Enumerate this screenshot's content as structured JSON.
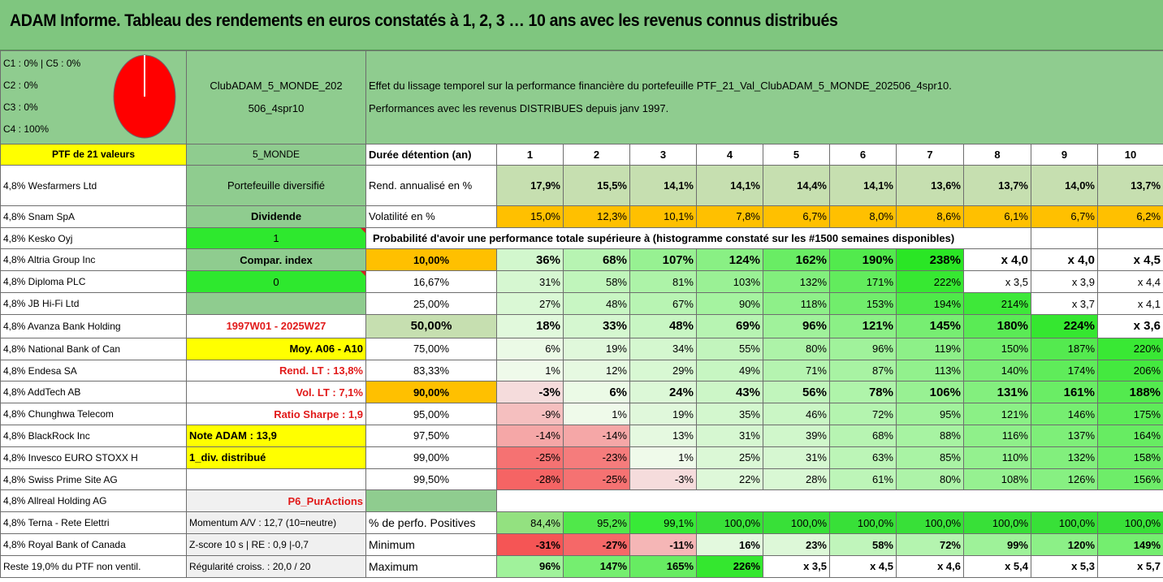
{
  "title": "ADAM Informe. Tableau des rendements en euros constatés à 1, 2, 3 … 10 ans avec les revenus connus distribués",
  "legend": [
    "C1 : 0% | C5 : 0%",
    "C2 : 0%",
    "C3 : 0%",
    "C4 : 100%"
  ],
  "pie": {
    "fill": "#ff0000",
    "c4_share": 100
  },
  "club_name_line1": "ClubADAM_5_MONDE_202",
  "club_name_line2": "506_4spr10",
  "description_line1": "Effet du lissage temporel sur la performance financière du portefeuille PTF_21_Val_ClubADAM_5_MONDE_202506_4spr10.",
  "description_line2": "Performances avec les revenus DISTRIBUES depuis janv 1997.",
  "ptf_label": "PTF de 21 valeurs",
  "ptf_code": "5_MONDE",
  "duree_label": "Durée détention (an)",
  "years": [
    "1",
    "2",
    "3",
    "4",
    "5",
    "6",
    "7",
    "8",
    "9",
    "10"
  ],
  "holdings": [
    "4,8% Wesfarmers Ltd",
    "4,8% Snam SpA",
    "4,8% Kesko Oyj",
    "4,8% Altria Group Inc",
    "4,8% Diploma PLC",
    "4,8% JB Hi-Fi Ltd",
    "4,8% Avanza Bank Holding",
    "4,8% National Bank of Can",
    "4,8% Endesa SA",
    "4,8% AddTech AB",
    "4,8% Chunghwa Telecom",
    "4,8% BlackRock Inc",
    "4,8% Invesco EURO STOXX H",
    "4,8% Swiss Prime Site AG",
    "4,8% Allreal Holding AG",
    "4,8% Terna - Rete Elettri",
    "4,8% Royal Bank of Canada",
    "Reste 19,0% du PTF non ventil."
  ],
  "info": {
    "portefeuille": "Portefeuille diversifié",
    "dividende": "Dividende",
    "kesko_val": "1",
    "compar": "Compar. index",
    "diploma_val": "0",
    "period": "1997W01 - 2025W27",
    "moy": "Moy. A06 - A10",
    "rend_lt": "Rend. LT : 13,8%",
    "vol_lt": "Vol. LT : 7,1%",
    "sharpe": "Ratio Sharpe : 1,9",
    "note": "Note ADAM : 13,9",
    "div": "1_div. distribué",
    "p6": "P6_PurActions",
    "momentum": "Momentum A/V : 12,7 (10=neutre)",
    "zscore": "Z-score 10 s | RE : 0,9 |-0,7",
    "regularite": "Régularité croiss. : 20,0 / 20"
  },
  "rend": {
    "label": "Rend. annualisé en %",
    "values": [
      "17,9%",
      "15,5%",
      "14,1%",
      "14,1%",
      "14,4%",
      "14,1%",
      "13,6%",
      "13,7%",
      "14,0%",
      "13,7%"
    ]
  },
  "vol": {
    "label": "Volatilité en %",
    "values": [
      "15,0%",
      "12,3%",
      "10,1%",
      "7,8%",
      "6,7%",
      "8,0%",
      "8,6%",
      "6,1%",
      "6,7%",
      "6,2%"
    ]
  },
  "proba_title": "Probabilité d'avoir une performance totale supérieure à (histogramme constaté sur les #1500 semaines disponibles)",
  "quantiles": [
    {
      "p": "10,00%",
      "values": [
        "36%",
        "68%",
        "107%",
        "124%",
        "162%",
        "190%",
        "238%",
        "x 4,0",
        "x 4,0",
        "x 4,5"
      ]
    },
    {
      "p": "16,67%",
      "values": [
        "31%",
        "58%",
        "81%",
        "103%",
        "132%",
        "171%",
        "222%",
        "x 3,5",
        "x 3,9",
        "x 4,4"
      ]
    },
    {
      "p": "25,00%",
      "values": [
        "27%",
        "48%",
        "67%",
        "90%",
        "118%",
        "153%",
        "194%",
        "214%",
        "x 3,7",
        "x 4,1"
      ]
    },
    {
      "p": "50,00%",
      "values": [
        "18%",
        "33%",
        "48%",
        "69%",
        "96%",
        "121%",
        "145%",
        "180%",
        "224%",
        "x 3,6"
      ]
    },
    {
      "p": "75,00%",
      "values": [
        "6%",
        "19%",
        "34%",
        "55%",
        "80%",
        "96%",
        "119%",
        "150%",
        "187%",
        "220%"
      ]
    },
    {
      "p": "83,33%",
      "values": [
        "1%",
        "12%",
        "29%",
        "49%",
        "71%",
        "87%",
        "113%",
        "140%",
        "174%",
        "206%"
      ]
    },
    {
      "p": "90,00%",
      "values": [
        "-3%",
        "6%",
        "24%",
        "43%",
        "56%",
        "78%",
        "106%",
        "131%",
        "161%",
        "188%"
      ]
    },
    {
      "p": "95,00%",
      "values": [
        "-9%",
        "1%",
        "19%",
        "35%",
        "46%",
        "72%",
        "95%",
        "121%",
        "146%",
        "175%"
      ]
    },
    {
      "p": "97,50%",
      "values": [
        "-14%",
        "-14%",
        "13%",
        "31%",
        "39%",
        "68%",
        "88%",
        "116%",
        "137%",
        "164%"
      ]
    },
    {
      "p": "99,00%",
      "values": [
        "-25%",
        "-23%",
        "1%",
        "25%",
        "31%",
        "63%",
        "85%",
        "110%",
        "132%",
        "158%"
      ]
    },
    {
      "p": "99,50%",
      "values": [
        "-28%",
        "-25%",
        "-3%",
        "22%",
        "28%",
        "61%",
        "80%",
        "108%",
        "126%",
        "156%"
      ]
    }
  ],
  "positives": {
    "label": "% de perfo. Positives",
    "values": [
      "84,4%",
      "95,2%",
      "99,1%",
      "100,0%",
      "100,0%",
      "100,0%",
      "100,0%",
      "100,0%",
      "100,0%",
      "100,0%"
    ]
  },
  "minimum": {
    "label": "Minimum",
    "values": [
      "-31%",
      "-27%",
      "-11%",
      "16%",
      "23%",
      "58%",
      "72%",
      "99%",
      "120%",
      "149%"
    ]
  },
  "maximum": {
    "label": "Maximum",
    "values": [
      "96%",
      "147%",
      "165%",
      "226%",
      "x 3,5",
      "x 4,5",
      "x 4,6",
      "x 5,4",
      "x 5,3",
      "x 5,7"
    ]
  },
  "colors": {
    "header_green": "#7fc67f",
    "yellow": "#ffff00",
    "lime": "#2ee82e",
    "orange": "#ffc000",
    "red_text": "#e11a1a"
  }
}
